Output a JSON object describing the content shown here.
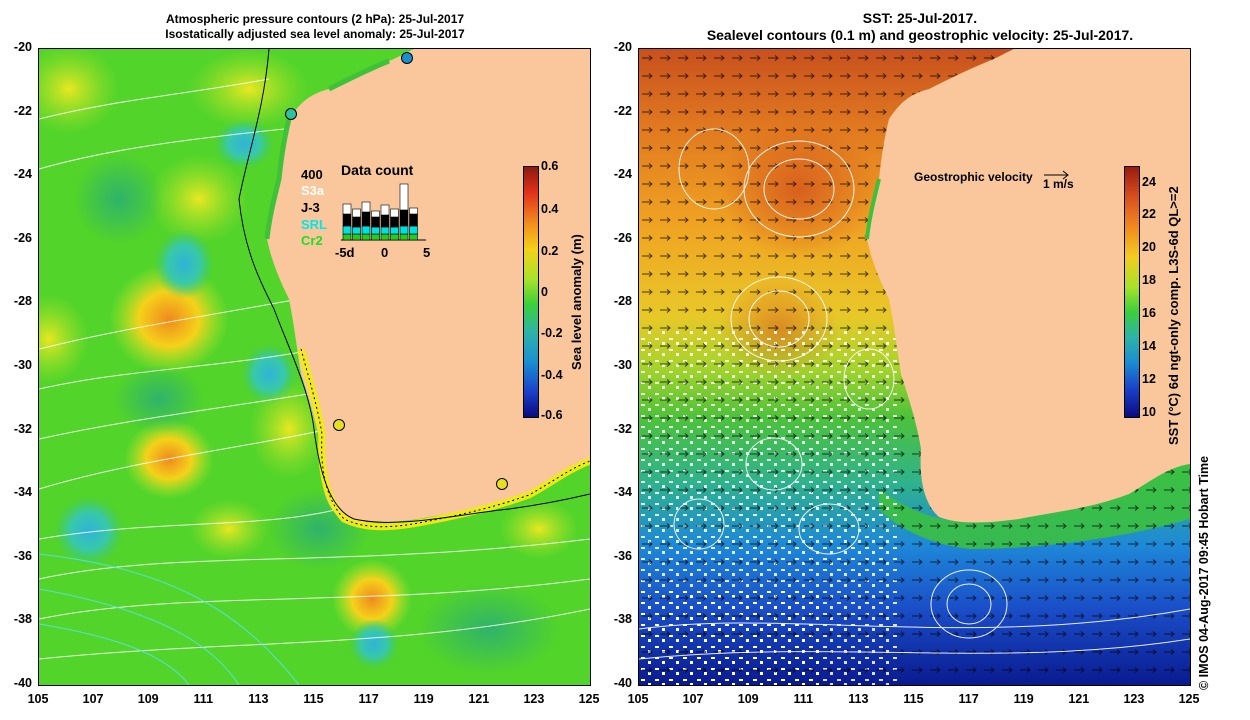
{
  "left_panel": {
    "title_line1": "Atmospheric pressure contours (2 hPa): 25-Jul-2017",
    "title_line2": "Isostatically adjusted sea level anomaly: 25-Jul-2017",
    "colorbar_label": "Sea level anomaly (m)",
    "colorbar_ticks": [
      "0.6",
      "0.4",
      "0.2",
      "0",
      "-0.2",
      "-0.4",
      "-0.6"
    ],
    "inset": {
      "count_max": "400",
      "title": "Data count",
      "missions": [
        "S3a",
        "J-3",
        "SRL",
        "Cr2"
      ],
      "mission_colors": [
        "#ffffff",
        "#000000",
        "#00e0e0",
        "#22cc22"
      ],
      "x_ticks": [
        "-5d",
        "0",
        "5"
      ]
    }
  },
  "right_panel": {
    "title_line1": "SST: 25-Jul-2017.",
    "title_line2": "Sealevel contours (0.1 m) and geostrophic velocity: 25-Jul-2017.",
    "colorbar_label": "SST (°C) 6d ngt-only comp. L3S-6d QL>=2",
    "colorbar_ticks": [
      "24",
      "22",
      "20",
      "18",
      "16",
      "14",
      "12",
      "10"
    ],
    "velocity_key_label": "Geostrophic velocity",
    "velocity_key_unit": "1 m/s"
  },
  "axes": {
    "lat_ticks": [
      "-20",
      "-22",
      "-24",
      "-26",
      "-28",
      "-30",
      "-32",
      "-34",
      "-36",
      "-38",
      "-40"
    ],
    "lon_ticks": [
      "105",
      "107",
      "109",
      "111",
      "113",
      "115",
      "117",
      "119",
      "121",
      "123",
      "125"
    ]
  },
  "credit": "© IMOS 04-Aug-2017 09:45 Hobart Time",
  "colors": {
    "land": "#f9c79b",
    "sla_background": "#52d42a",
    "sst_background": "#3fb85a"
  }
}
